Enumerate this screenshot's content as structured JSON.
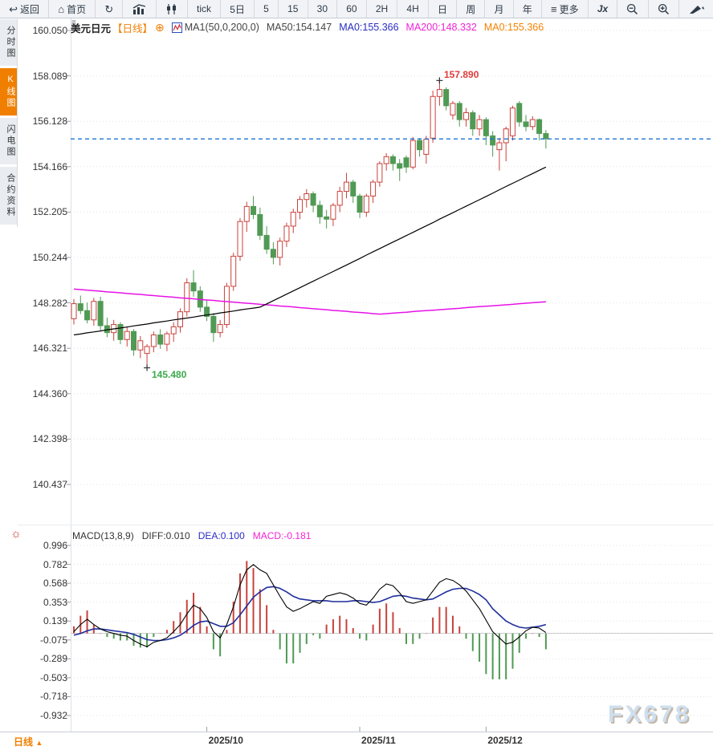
{
  "toolbar": {
    "back_label": "返回",
    "home_label": "首页",
    "periods": [
      "tick",
      "5日",
      "5",
      "15",
      "30",
      "60",
      "2H",
      "4H",
      "日",
      "周",
      "月",
      "年"
    ],
    "more_label": "更多",
    "fx_label": "Jx"
  },
  "icons": {
    "back": "↩",
    "home": "⌂",
    "refresh": "↻",
    "more": "≡",
    "plus_circled": "⊕",
    "settings": "☼",
    "triangle_up": "▲",
    "pane_handle": "≡"
  },
  "sidebar": {
    "tabs": [
      {
        "label": "分时图",
        "active": false
      },
      {
        "label": "K线图",
        "active": true
      },
      {
        "label": "闪电图",
        "active": false
      },
      {
        "label": "合约资料",
        "active": false
      }
    ]
  },
  "symbol_header": {
    "symbol": "美元日元",
    "period_tag": "【日线】",
    "ma_settings": "MA1(50,0,200,0)",
    "ma50": "MA50:154.147",
    "ma0_blue": "MA0:155.366",
    "ma200": "MA200:148.332",
    "ma0_orange": "MA0:155.366"
  },
  "macd_header": {
    "title": "MACD(13,8,9)",
    "diff": "DIFF:0.010",
    "dea": "DEA:0.100",
    "macd": "MACD:-0.181"
  },
  "annotations": {
    "high": {
      "text": "157.890",
      "price": 157.89
    },
    "low": {
      "text": "145.480",
      "price": 145.48
    }
  },
  "bottom_bar": {
    "period_label": "日线"
  },
  "watermark": "FX678",
  "colors": {
    "up_candle": "#c9423c",
    "down_candle": "#509a54",
    "ma50_line": "#000000",
    "ma200_line": "#e612e6",
    "last_price_line": "#1b74d4",
    "diff_line": "#000000",
    "dea_line": "#1f2f9e",
    "accent_orange": "#f07f00",
    "grid": "#e4e4e4"
  },
  "chart_data": {
    "type": "candlestick",
    "symbol": "美元日元 (USD/JPY)",
    "period": "日线",
    "price_axis_ticks": [
      160.05,
      158.089,
      156.128,
      154.166,
      152.205,
      150.244,
      148.282,
      146.321,
      144.36,
      142.398,
      140.437
    ],
    "last_price": 155.366,
    "x_tick_labels": [
      "2025/10",
      "2025/11",
      "2025/12"
    ],
    "x_tick_candle_index": [
      20,
      43,
      62
    ],
    "candles": [
      [
        147.6,
        148.45,
        147.35,
        148.25
      ],
      [
        148.25,
        148.6,
        147.8,
        147.95
      ],
      [
        147.95,
        148.3,
        147.4,
        147.55
      ],
      [
        147.55,
        148.5,
        147.3,
        148.35
      ],
      [
        148.35,
        148.55,
        147.1,
        147.3
      ],
      [
        147.3,
        147.65,
        146.8,
        147.0
      ],
      [
        147.0,
        147.55,
        146.65,
        147.35
      ],
      [
        147.35,
        147.45,
        146.5,
        146.7
      ],
      [
        146.7,
        147.25,
        146.4,
        147.05
      ],
      [
        147.05,
        147.15,
        146.0,
        146.25
      ],
      [
        146.25,
        146.85,
        145.9,
        146.65
      ],
      [
        146.1,
        146.5,
        145.48,
        146.4
      ],
      [
        146.4,
        147.05,
        146.15,
        146.9
      ],
      [
        146.9,
        147.15,
        146.3,
        146.5
      ],
      [
        146.5,
        147.05,
        146.2,
        146.95
      ],
      [
        146.95,
        147.45,
        146.6,
        147.25
      ],
      [
        147.25,
        148.05,
        147.0,
        147.9
      ],
      [
        147.9,
        149.35,
        147.7,
        149.15
      ],
      [
        149.15,
        149.7,
        148.55,
        148.8
      ],
      [
        148.8,
        149.0,
        147.9,
        148.1
      ],
      [
        148.1,
        148.4,
        147.5,
        147.7
      ],
      [
        147.7,
        147.85,
        146.6,
        147.0
      ],
      [
        147.0,
        147.55,
        146.8,
        147.35
      ],
      [
        147.35,
        149.15,
        147.2,
        149.0
      ],
      [
        149.0,
        150.45,
        148.8,
        150.3
      ],
      [
        150.3,
        151.95,
        150.1,
        151.8
      ],
      [
        151.8,
        152.65,
        151.35,
        152.45
      ],
      [
        152.45,
        152.9,
        151.9,
        152.1
      ],
      [
        152.1,
        152.4,
        151.0,
        151.2
      ],
      [
        151.2,
        151.6,
        150.4,
        150.6
      ],
      [
        150.6,
        150.9,
        149.95,
        150.25
      ],
      [
        150.25,
        151.1,
        149.9,
        150.95
      ],
      [
        150.95,
        151.75,
        150.7,
        151.6
      ],
      [
        151.6,
        152.35,
        151.3,
        152.2
      ],
      [
        152.2,
        152.9,
        151.9,
        152.75
      ],
      [
        152.75,
        153.2,
        152.4,
        153.0
      ],
      [
        153.0,
        153.1,
        152.2,
        152.5
      ],
      [
        152.5,
        152.7,
        151.7,
        152.0
      ],
      [
        152.0,
        152.3,
        151.5,
        151.9
      ],
      [
        151.9,
        152.6,
        151.6,
        152.5
      ],
      [
        152.5,
        153.3,
        152.2,
        153.1
      ],
      [
        153.1,
        153.9,
        152.8,
        153.5
      ],
      [
        153.5,
        153.6,
        152.6,
        152.9
      ],
      [
        152.9,
        153.0,
        151.95,
        152.2
      ],
      [
        152.2,
        153.0,
        152.0,
        152.9
      ],
      [
        152.9,
        153.6,
        152.6,
        153.5
      ],
      [
        153.5,
        154.4,
        153.3,
        154.3
      ],
      [
        154.3,
        154.75,
        154.0,
        154.6
      ],
      [
        154.6,
        154.7,
        154.0,
        154.3
      ],
      [
        154.3,
        154.5,
        153.55,
        154.1
      ],
      [
        154.55,
        154.65,
        153.9,
        154.15
      ],
      [
        154.15,
        155.45,
        154.05,
        155.3
      ],
      [
        155.3,
        155.4,
        154.6,
        154.9
      ],
      [
        154.7,
        155.5,
        154.3,
        155.35
      ],
      [
        155.4,
        157.45,
        155.2,
        157.2
      ],
      [
        157.2,
        157.89,
        156.8,
        157.5
      ],
      [
        157.5,
        157.6,
        156.6,
        156.8
      ],
      [
        156.4,
        157.0,
        156.2,
        156.9
      ],
      [
        156.9,
        157.0,
        155.9,
        156.2
      ],
      [
        156.2,
        156.7,
        155.9,
        156.5
      ],
      [
        156.5,
        156.6,
        155.5,
        155.8
      ],
      [
        155.8,
        156.4,
        155.5,
        156.2
      ],
      [
        156.2,
        156.3,
        155.1,
        155.5
      ],
      [
        155.5,
        155.7,
        154.6,
        155.1
      ],
      [
        154.9,
        155.4,
        154.0,
        155.2
      ],
      [
        155.2,
        155.9,
        154.4,
        155.8
      ],
      [
        155.5,
        156.8,
        155.3,
        156.7
      ],
      [
        156.9,
        157.0,
        155.9,
        156.1
      ],
      [
        156.1,
        156.4,
        155.7,
        155.9
      ],
      [
        155.9,
        156.35,
        155.75,
        156.2
      ],
      [
        156.2,
        156.25,
        155.3,
        155.6
      ],
      [
        155.6,
        155.75,
        154.95,
        155.37
      ]
    ],
    "ma50": [
      146.9,
      146.94,
      146.99,
      147.03,
      147.07,
      147.12,
      147.16,
      147.2,
      147.24,
      147.29,
      147.33,
      147.37,
      147.42,
      147.46,
      147.5,
      147.55,
      147.59,
      147.63,
      147.67,
      147.72,
      147.76,
      147.8,
      147.85,
      147.89,
      147.93,
      147.98,
      148.02,
      148.06,
      148.1,
      148.24,
      148.38,
      148.52,
      148.66,
      148.8,
      148.94,
      149.08,
      149.22,
      149.36,
      149.5,
      149.64,
      149.78,
      149.92,
      150.06,
      150.2,
      150.35,
      150.49,
      150.63,
      150.77,
      150.91,
      151.05,
      151.19,
      151.33,
      151.47,
      151.61,
      151.75,
      151.9,
      152.04,
      152.18,
      152.32,
      152.46,
      152.6,
      152.74,
      152.88,
      153.02,
      153.17,
      153.31,
      153.45,
      153.59,
      153.73,
      153.87,
      154.01,
      154.15
    ],
    "ma200": [
      148.88,
      148.86,
      148.83,
      148.81,
      148.79,
      148.76,
      148.74,
      148.72,
      148.69,
      148.67,
      148.65,
      148.62,
      148.6,
      148.57,
      148.55,
      148.53,
      148.5,
      148.48,
      148.46,
      148.43,
      148.41,
      148.39,
      148.36,
      148.34,
      148.32,
      148.29,
      148.27,
      148.25,
      148.22,
      148.2,
      148.18,
      148.15,
      148.13,
      148.11,
      148.08,
      148.06,
      148.03,
      148.01,
      147.99,
      147.96,
      147.94,
      147.92,
      147.89,
      147.87,
      147.85,
      147.82,
      147.8,
      147.82,
      147.84,
      147.86,
      147.88,
      147.91,
      147.93,
      147.95,
      147.97,
      147.99,
      148.01,
      148.03,
      148.05,
      148.08,
      148.1,
      148.12,
      148.14,
      148.16,
      148.18,
      148.2,
      148.22,
      148.25,
      148.27,
      148.29,
      148.31,
      148.33
    ],
    "macd": {
      "params": "(13,8,9)",
      "axis_ticks": [
        0.996,
        0.782,
        0.568,
        0.353,
        0.139,
        -0.075,
        -0.289,
        -0.503,
        -0.718,
        -0.932
      ],
      "last": {
        "diff": 0.01,
        "dea": 0.1,
        "macd": -0.181
      },
      "diff": [
        0.02,
        0.1,
        0.16,
        0.1,
        0.05,
        0.02,
        0.0,
        -0.02,
        -0.03,
        -0.08,
        -0.12,
        -0.15,
        -0.1,
        -0.08,
        -0.05,
        0.02,
        0.1,
        0.22,
        0.32,
        0.28,
        0.18,
        0.02,
        -0.05,
        0.1,
        0.3,
        0.55,
        0.72,
        0.78,
        0.72,
        0.68,
        0.55,
        0.42,
        0.3,
        0.25,
        0.28,
        0.32,
        0.36,
        0.34,
        0.42,
        0.44,
        0.46,
        0.44,
        0.4,
        0.34,
        0.32,
        0.4,
        0.5,
        0.56,
        0.54,
        0.46,
        0.36,
        0.34,
        0.36,
        0.38,
        0.48,
        0.58,
        0.62,
        0.6,
        0.55,
        0.48,
        0.38,
        0.28,
        0.15,
        0.02,
        -0.05,
        -0.12,
        -0.1,
        -0.04,
        0.03,
        0.07,
        0.06,
        0.01
      ],
      "dea": [
        -0.02,
        0.0,
        0.03,
        0.05,
        0.05,
        0.04,
        0.03,
        0.02,
        0.01,
        -0.01,
        -0.04,
        -0.07,
        -0.08,
        -0.08,
        -0.07,
        -0.05,
        -0.02,
        0.03,
        0.09,
        0.13,
        0.14,
        0.11,
        0.08,
        0.08,
        0.12,
        0.21,
        0.31,
        0.41,
        0.47,
        0.52,
        0.53,
        0.51,
        0.47,
        0.42,
        0.39,
        0.38,
        0.37,
        0.37,
        0.37,
        0.36,
        0.36,
        0.36,
        0.37,
        0.37,
        0.36,
        0.35,
        0.36,
        0.39,
        0.42,
        0.43,
        0.42,
        0.4,
        0.39,
        0.38,
        0.39,
        0.43,
        0.47,
        0.5,
        0.51,
        0.51,
        0.48,
        0.44,
        0.38,
        0.28,
        0.21,
        0.14,
        0.1,
        0.07,
        0.06,
        0.07,
        0.08,
        0.1
      ]
    }
  }
}
